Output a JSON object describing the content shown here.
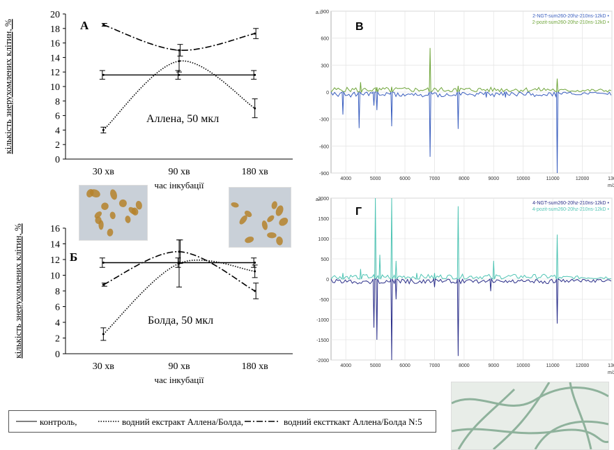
{
  "chart_data": [
    {
      "id": "A",
      "type": "line",
      "panel_label": "А",
      "annotation": "Аллена, 50 мкл",
      "ylabel": "кількість знерухомлених клітин, %",
      "xlabel": "час інкубації",
      "categories": [
        "30 хв",
        "90 хв",
        "180 хв"
      ],
      "ylim": [
        0,
        20
      ],
      "yticks": [
        "0",
        "2",
        "4",
        "6",
        "8",
        "10",
        "12",
        "14",
        "16",
        "18",
        "20"
      ],
      "series": [
        {
          "name": "контроль",
          "style": "solid",
          "values": [
            11.6,
            11.6,
            11.6
          ],
          "errors": [
            0.6,
            0.6,
            0.6
          ]
        },
        {
          "name": "водний екстракт Аллена/Болда",
          "style": "dotted",
          "values": [
            4.0,
            13.5,
            7.0
          ],
          "errors": [
            0.4,
            1.5,
            1.3
          ]
        },
        {
          "name": "водний екстракт Аллена/Болда N:5",
          "style": "dashdot",
          "values": [
            18.5,
            15.0,
            17.3
          ],
          "errors": [
            0.2,
            0.8,
            0.7
          ]
        }
      ]
    },
    {
      "id": "B",
      "type": "line",
      "panel_label": "Б",
      "annotation": "Болда, 50 мкл",
      "ylabel": "кількість знерухомлених клітин, %",
      "xlabel": "час інкубації",
      "categories": [
        "30 хв",
        "90 хв",
        "180 хв"
      ],
      "ylim": [
        0,
        16
      ],
      "yticks": [
        "0",
        "2",
        "4",
        "6",
        "8",
        "10",
        "12",
        "14",
        "16"
      ],
      "series": [
        {
          "name": "контроль",
          "style": "solid",
          "values": [
            11.6,
            11.6,
            11.6
          ],
          "errors": [
            0.6,
            0.6,
            0.6
          ]
        },
        {
          "name": "водний екстракт Аллена/Болда",
          "style": "dotted",
          "values": [
            2.5,
            11.5,
            10.5
          ],
          "errors": [
            0.8,
            3.0,
            0.8
          ]
        },
        {
          "name": "водний екстракт Аллена/Болда N:5",
          "style": "dashdot",
          "values": [
            8.8,
            13.0,
            8.0
          ],
          "errors": [
            0.2,
            1.5,
            1.0
          ]
        }
      ]
    },
    {
      "id": "V",
      "type": "line",
      "panel_label": "В",
      "yunit": "a.i.",
      "xunit": "m/z",
      "xlim": [
        3500,
        13000
      ],
      "ylim": [
        -900,
        900
      ],
      "xticks": [
        "4000",
        "5000",
        "6000",
        "7000",
        "8000",
        "9000",
        "10000",
        "11000",
        "12000",
        "130"
      ],
      "yticks": [
        "900",
        "600",
        "300",
        "0",
        "-300",
        "-600",
        "-900"
      ],
      "legend": [
        "2-NGT-sum260-20hz-210ns-12kD •",
        "2-pozit-sum260-20hz-210ns-12kD •"
      ],
      "series": [
        {
          "name": "2-pozit-sum260-20hz-210ns-12kD",
          "color": "#6fa53a",
          "peaks": [
            [
              4500,
              110
            ],
            [
              5050,
              55
            ],
            [
              5550,
              60
            ],
            [
              6850,
              490
            ],
            [
              7800,
              70
            ],
            [
              11150,
              150
            ]
          ]
        },
        {
          "name": "2-NGT-sum260-20hz-210ns-12kD",
          "color": "#3b5fbf",
          "peaks": [
            [
              3900,
              -250
            ],
            [
              4450,
              -400
            ],
            [
              4950,
              -150
            ],
            [
              5050,
              -200
            ],
            [
              5550,
              -380
            ],
            [
              6850,
              -720
            ],
            [
              7800,
              -410
            ],
            [
              8750,
              -60
            ],
            [
              9400,
              -60
            ],
            [
              11150,
              -900
            ]
          ]
        }
      ]
    },
    {
      "id": "G",
      "type": "line",
      "panel_label": "Г",
      "yunit": "a.i.",
      "xunit": "m/z",
      "xlim": [
        3500,
        13000
      ],
      "ylim": [
        -2000,
        2000
      ],
      "xticks": [
        "4000",
        "5000",
        "6000",
        "7000",
        "8000",
        "9000",
        "10000",
        "11000",
        "12000",
        "130"
      ],
      "yticks": [
        "2000",
        "1500",
        "1000",
        "500",
        "0",
        "-500",
        "-1000",
        "-1500",
        "-2000"
      ],
      "legend": [
        "4-NGT-sum260-20hz-210ns-12kD •",
        "4-pozit-sum260-20hz-210ns-12kD •"
      ],
      "series": [
        {
          "name": "4-pozit-sum260-20hz-210ns-12kD",
          "color": "#4fc4b4",
          "peaks": [
            [
              3900,
              150
            ],
            [
              4500,
              250
            ],
            [
              5000,
              2000
            ],
            [
              5150,
              600
            ],
            [
              5550,
              2000
            ],
            [
              5700,
              450
            ],
            [
              6400,
              150
            ],
            [
              7000,
              150
            ],
            [
              7800,
              1800
            ],
            [
              9000,
              450
            ],
            [
              11150,
              1100
            ]
          ]
        },
        {
          "name": "4-NGT-sum260-20hz-210ns-12kD",
          "color": "#2b2f8a",
          "peaks": [
            [
              4950,
              -1200
            ],
            [
              5050,
              -1500
            ],
            [
              5550,
              -2000
            ],
            [
              5700,
              -500
            ],
            [
              7000,
              -200
            ],
            [
              7800,
              -1900
            ],
            [
              8900,
              -300
            ],
            [
              11150,
              -1100
            ]
          ]
        }
      ]
    }
  ],
  "legend": {
    "items": [
      {
        "style": "solid",
        "label": "контроль,"
      },
      {
        "style": "dotted",
        "label": "водний екстракт Аллена/Болда,"
      },
      {
        "style": "dashdot",
        "label": "водний екстткакт Аллена/Болда N:5"
      }
    ]
  },
  "colors": {
    "photo_cells_bg": "#c9d0d8",
    "photo_cells_cell": "#b5822c",
    "photo_filament_bg": "#e8ede8",
    "photo_filament": "#8fb29c"
  }
}
